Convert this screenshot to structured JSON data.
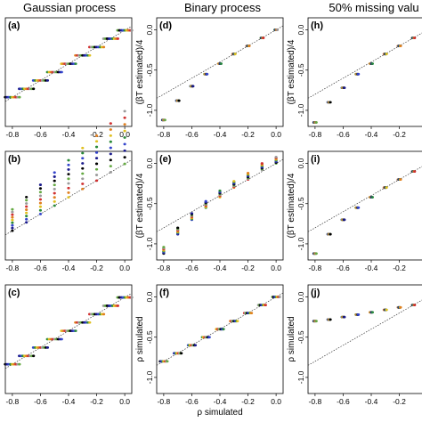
{
  "column_titles": [
    "Gaussian process",
    "Binary process",
    "50% missing valu"
  ],
  "chart_data": [
    {
      "panel": "(a)",
      "type": "scatter",
      "column": 0,
      "row": 0,
      "xlim": [
        -0.85,
        0.05
      ],
      "ylim": [
        -1.15,
        0.15
      ],
      "x_ticks": [
        -0.8,
        -0.6,
        -0.4,
        -0.2,
        0.0
      ],
      "x_tick_labels": [
        "-0.8",
        "-0.6",
        "-0.4",
        "-0.2",
        "0.0"
      ],
      "y_ticks": [],
      "y_tick_labels": [],
      "ylabel": "",
      "xlabel": "",
      "reference_line": "identity",
      "points": [
        [
          -0.8,
          -0.8
        ],
        [
          -0.7,
          -0.7
        ],
        [
          -0.6,
          -0.6
        ],
        [
          -0.5,
          -0.5
        ],
        [
          -0.4,
          -0.4
        ],
        [
          -0.3,
          -0.3
        ],
        [
          -0.2,
          -0.2
        ],
        [
          -0.1,
          -0.1
        ],
        [
          0.0,
          0.0
        ]
      ],
      "spread": "wide-horizontal"
    },
    {
      "panel": "(d)",
      "type": "scatter",
      "column": 1,
      "row": 0,
      "xlim": [
        -0.85,
        0.05
      ],
      "ylim": [
        -1.2,
        0.15
      ],
      "x_ticks": [
        -0.8,
        -0.6,
        -0.4,
        -0.2,
        0.0
      ],
      "x_tick_labels": [
        "-0.8",
        "-0.6",
        "-0.4",
        "-0.2",
        "0.0"
      ],
      "y_ticks": [
        0.0,
        -0.5,
        -1.0
      ],
      "y_tick_labels": [
        "0.0",
        "-0.5",
        "-1.0"
      ],
      "ylabel": "(βT estimated)/4",
      "xlabel": "",
      "reference_line": "identity",
      "points": [
        [
          -0.8,
          -1.12
        ],
        [
          -0.7,
          -0.88
        ],
        [
          -0.6,
          -0.7
        ],
        [
          -0.5,
          -0.55
        ],
        [
          -0.4,
          -0.42
        ],
        [
          -0.3,
          -0.3
        ],
        [
          -0.2,
          -0.2
        ],
        [
          -0.1,
          -0.1
        ],
        [
          0.0,
          0.0
        ]
      ],
      "spread": "narrow"
    },
    {
      "panel": "(h)",
      "type": "scatter",
      "column": 2,
      "row": 0,
      "xlim": [
        -0.85,
        0.05
      ],
      "ylim": [
        -1.2,
        0.15
      ],
      "x_ticks": [
        -0.8,
        -0.6,
        -0.4,
        -0.2,
        0.0
      ],
      "x_tick_labels": [
        "-0.8",
        "-0.6",
        "-0.4",
        "-0.2",
        "0"
      ],
      "y_ticks": [
        0.0,
        -0.5,
        -1.0
      ],
      "y_tick_labels": [
        "0.0",
        "-0.5",
        "-1.0"
      ],
      "ylabel": "(βT estimated)/4",
      "xlabel": "",
      "reference_line": "identity",
      "points": [
        [
          -0.8,
          -1.15
        ],
        [
          -0.7,
          -0.9
        ],
        [
          -0.6,
          -0.72
        ],
        [
          -0.5,
          -0.55
        ],
        [
          -0.4,
          -0.42
        ],
        [
          -0.3,
          -0.3
        ],
        [
          -0.2,
          -0.2
        ],
        [
          -0.1,
          -0.1
        ],
        [
          0.0,
          0.0
        ]
      ],
      "spread": "narrow"
    },
    {
      "panel": "(b)",
      "type": "scatter",
      "column": 0,
      "row": 1,
      "xlim": [
        -0.85,
        0.05
      ],
      "ylim": [
        -1.15,
        0.15
      ],
      "x_ticks": [
        -0.8,
        -0.6,
        -0.4,
        -0.2,
        0.0
      ],
      "x_tick_labels": [
        "-0.8",
        "-0.6",
        "-0.4",
        "-0.2",
        "0.0"
      ],
      "y_ticks": [],
      "y_tick_labels": [],
      "ylabel": "",
      "xlabel": "",
      "reference_line": "identity",
      "points": [
        [
          -0.8,
          -0.8
        ],
        [
          -0.7,
          -0.7
        ],
        [
          -0.6,
          -0.6
        ],
        [
          -0.5,
          -0.5
        ],
        [
          -0.4,
          -0.4
        ],
        [
          -0.3,
          -0.3
        ],
        [
          -0.2,
          -0.2
        ],
        [
          -0.1,
          -0.1
        ],
        [
          0.0,
          0.0
        ]
      ],
      "spread": "vertical-column"
    },
    {
      "panel": "(e)",
      "type": "scatter",
      "column": 1,
      "row": 1,
      "xlim": [
        -0.85,
        0.05
      ],
      "ylim": [
        -1.2,
        0.15
      ],
      "x_ticks": [
        -0.8,
        -0.6,
        -0.4,
        -0.2,
        0.0
      ],
      "x_tick_labels": [
        "-0.8",
        "-0.6",
        "-0.4",
        "-0.2",
        "0.0"
      ],
      "y_ticks": [
        0.0,
        -0.5,
        -1.0
      ],
      "y_tick_labels": [
        "0.0",
        "-0.5",
        "-1.0"
      ],
      "ylabel": "(βT estimated)/4",
      "xlabel": "",
      "reference_line": "identity",
      "points": [
        [
          -0.8,
          -1.12
        ],
        [
          -0.7,
          -0.88
        ],
        [
          -0.6,
          -0.7
        ],
        [
          -0.5,
          -0.55
        ],
        [
          -0.4,
          -0.42
        ],
        [
          -0.3,
          -0.3
        ],
        [
          -0.2,
          -0.2
        ],
        [
          -0.1,
          -0.08
        ],
        [
          0.0,
          0.0
        ]
      ],
      "spread": "short-vertical"
    },
    {
      "panel": "(i)",
      "type": "scatter",
      "column": 2,
      "row": 1,
      "xlim": [
        -0.85,
        0.05
      ],
      "ylim": [
        -1.2,
        0.15
      ],
      "x_ticks": [
        -0.8,
        -0.6,
        -0.4,
        -0.2,
        0.0
      ],
      "x_tick_labels": [
        "-0.8",
        "-0.6",
        "-0.4",
        "-0.2",
        "0"
      ],
      "y_ticks": [
        0.0,
        -0.5,
        -1.0
      ],
      "y_tick_labels": [
        "0.0",
        "-0.5",
        "-1.0"
      ],
      "ylabel": "(βT estimated)/4",
      "xlabel": "",
      "reference_line": "identity",
      "points": [
        [
          -0.8,
          -1.12
        ],
        [
          -0.7,
          -0.88
        ],
        [
          -0.6,
          -0.7
        ],
        [
          -0.5,
          -0.55
        ],
        [
          -0.4,
          -0.42
        ],
        [
          -0.3,
          -0.3
        ],
        [
          -0.2,
          -0.2
        ],
        [
          -0.1,
          -0.1
        ],
        [
          0.0,
          0.0
        ]
      ],
      "spread": "narrow"
    },
    {
      "panel": "(c)",
      "type": "scatter",
      "column": 0,
      "row": 2,
      "xlim": [
        -0.85,
        0.05
      ],
      "ylim": [
        -1.15,
        0.15
      ],
      "x_ticks": [
        -0.8,
        -0.6,
        -0.4,
        -0.2,
        0.0
      ],
      "x_tick_labels": [
        "-0.8",
        "-0.6",
        "-0.4",
        "-0.2",
        "0.0"
      ],
      "y_ticks": [],
      "y_tick_labels": [],
      "ylabel": "",
      "xlabel": "",
      "reference_line": "identity",
      "points": [
        [
          -0.8,
          -0.8
        ],
        [
          -0.7,
          -0.7
        ],
        [
          -0.6,
          -0.6
        ],
        [
          -0.5,
          -0.5
        ],
        [
          -0.4,
          -0.4
        ],
        [
          -0.3,
          -0.3
        ],
        [
          -0.2,
          -0.2
        ],
        [
          -0.1,
          -0.1
        ],
        [
          0.0,
          0.0
        ]
      ],
      "spread": "wide-horizontal"
    },
    {
      "panel": "(f)",
      "type": "scatter",
      "column": 1,
      "row": 2,
      "xlim": [
        -0.85,
        0.05
      ],
      "ylim": [
        -1.2,
        0.15
      ],
      "x_ticks": [
        -0.8,
        -0.6,
        -0.4,
        -0.2,
        0.0
      ],
      "x_tick_labels": [
        "-0.8",
        "-0.6",
        "-0.4",
        "-0.2",
        "0.0"
      ],
      "y_ticks": [
        0.0,
        -0.5,
        -1.0
      ],
      "y_tick_labels": [
        "0.0",
        "-0.5",
        "-1.0"
      ],
      "ylabel": "ρ simulated",
      "xlabel": "ρ simulated",
      "reference_line": "identity",
      "points": [
        [
          -0.8,
          -0.8
        ],
        [
          -0.7,
          -0.7
        ],
        [
          -0.6,
          -0.6
        ],
        [
          -0.5,
          -0.5
        ],
        [
          -0.4,
          -0.4
        ],
        [
          -0.3,
          -0.3
        ],
        [
          -0.2,
          -0.2
        ],
        [
          -0.1,
          -0.1
        ],
        [
          0.0,
          0.0
        ]
      ],
      "spread": "narrow-horizontal"
    },
    {
      "panel": "(j)",
      "type": "scatter",
      "column": 2,
      "row": 2,
      "xlim": [
        -0.85,
        0.05
      ],
      "ylim": [
        -1.2,
        0.15
      ],
      "x_ticks": [
        -0.8,
        -0.6,
        -0.4,
        -0.2,
        0.0
      ],
      "x_tick_labels": [
        "-0.8",
        "-0.6",
        "-0.4",
        "-0.2",
        "0"
      ],
      "y_ticks": [
        0.0,
        -0.5,
        -1.0
      ],
      "y_tick_labels": [
        "0.0",
        "-0.5",
        "-1.0"
      ],
      "ylabel": "ρ simulated",
      "xlabel": "",
      "reference_line": "identity",
      "points": [
        [
          -0.8,
          -0.3
        ],
        [
          -0.7,
          -0.28
        ],
        [
          -0.6,
          -0.25
        ],
        [
          -0.5,
          -0.22
        ],
        [
          -0.4,
          -0.19
        ],
        [
          -0.3,
          -0.16
        ],
        [
          -0.2,
          -0.13
        ],
        [
          -0.1,
          -0.1
        ],
        [
          0.0,
          -0.08
        ]
      ],
      "spread": "narrow"
    }
  ],
  "colors": {
    "points": [
      "#000000",
      "#1a1a8c",
      "#3344cc",
      "#2a8a3a",
      "#e0c020",
      "#e08020",
      "#d03030",
      "#9a9a9a",
      "#66aa44"
    ],
    "reference_line": "#333333",
    "axis": "#000000"
  }
}
